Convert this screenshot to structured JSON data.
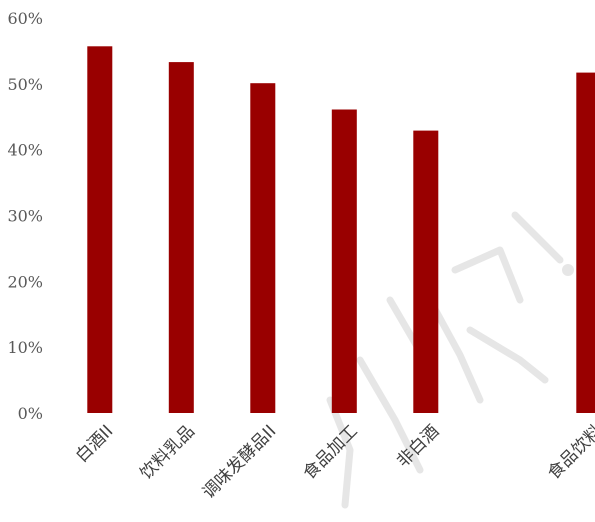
{
  "chart_data": {
    "type": "bar",
    "categories": [
      "白酒II",
      "饮料乳品",
      "调味发酵品II",
      "食品加工",
      "非白酒",
      "",
      "食品饮料"
    ],
    "values": [
      55.7,
      53.3,
      50.1,
      46.1,
      42.9,
      null,
      51.7
    ],
    "ylim": [
      0,
      60
    ],
    "yticks": [
      "0%",
      "10%",
      "20%",
      "30%",
      "40%",
      "50%",
      "60%"
    ],
    "bar_color": "#990000",
    "grid": false,
    "legend": "none",
    "title": "",
    "xlabel": "",
    "ylabel": ""
  }
}
